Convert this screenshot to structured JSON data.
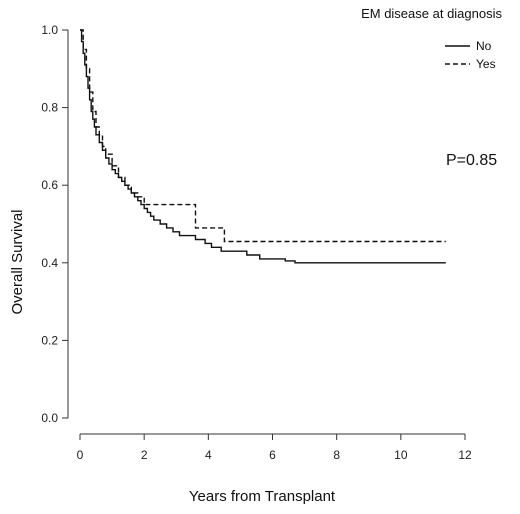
{
  "chart_data": {
    "type": "line",
    "step": true,
    "xlabel": "Years from Transplant",
    "ylabel": "Overall Survival",
    "xlim": [
      0,
      12
    ],
    "ylim": [
      0.0,
      1.0
    ],
    "xticks": [
      "0",
      "2",
      "4",
      "6",
      "8",
      "10",
      "12"
    ],
    "yticks": [
      "0.0",
      "0.2",
      "0.4",
      "0.6",
      "0.8",
      "1.0"
    ],
    "grid": false,
    "legend_title": "EM disease at diagnosis",
    "legend_position": "top-right",
    "annotation": "P=0.85",
    "series": [
      {
        "name": "No",
        "line_style": "solid",
        "x": [
          0,
          0.05,
          0.1,
          0.15,
          0.2,
          0.25,
          0.3,
          0.35,
          0.4,
          0.45,
          0.5,
          0.6,
          0.7,
          0.8,
          0.9,
          1.0,
          1.1,
          1.2,
          1.3,
          1.4,
          1.5,
          1.6,
          1.7,
          1.8,
          1.9,
          2.0,
          2.1,
          2.2,
          2.3,
          2.5,
          2.7,
          2.9,
          3.1,
          3.3,
          3.6,
          3.9,
          4.1,
          4.4,
          4.8,
          5.2,
          5.6,
          6.0,
          6.4,
          6.7,
          11.4
        ],
        "y": [
          1.0,
          0.97,
          0.94,
          0.91,
          0.88,
          0.85,
          0.82,
          0.79,
          0.77,
          0.75,
          0.73,
          0.71,
          0.69,
          0.67,
          0.655,
          0.64,
          0.63,
          0.62,
          0.61,
          0.6,
          0.59,
          0.58,
          0.57,
          0.56,
          0.55,
          0.54,
          0.53,
          0.52,
          0.51,
          0.5,
          0.49,
          0.48,
          0.47,
          0.47,
          0.46,
          0.45,
          0.44,
          0.43,
          0.43,
          0.42,
          0.41,
          0.41,
          0.405,
          0.4,
          0.4
        ]
      },
      {
        "name": "Yes",
        "line_style": "dashed",
        "x": [
          0,
          0.1,
          0.2,
          0.3,
          0.4,
          0.5,
          0.6,
          0.7,
          0.8,
          1.0,
          1.2,
          1.4,
          1.6,
          1.8,
          2.0,
          3.6,
          4.5,
          11.4
        ],
        "y": [
          1.0,
          0.95,
          0.9,
          0.84,
          0.79,
          0.75,
          0.73,
          0.7,
          0.68,
          0.65,
          0.62,
          0.6,
          0.58,
          0.57,
          0.55,
          0.49,
          0.455,
          0.455
        ]
      }
    ]
  }
}
